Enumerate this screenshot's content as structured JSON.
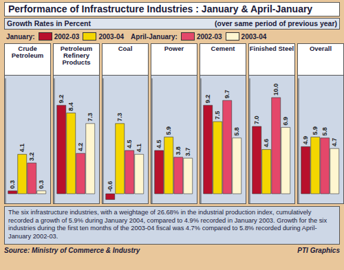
{
  "chart_data": {
    "type": "bar",
    "title": "Performance of Infrastructure Industries : January & April-January",
    "subtitle": "Growth Rates in Percent",
    "note": "(over same period of previous year)",
    "categories": [
      "Crude Petroleum",
      "Petroleum Refinery Products",
      "Coal",
      "Power",
      "Cement",
      "Finished Steel",
      "Overall"
    ],
    "series": [
      {
        "name": "2002-03",
        "period": "January:",
        "color": "#b8102c",
        "values": [
          0.3,
          9.2,
          -0.6,
          4.5,
          9.2,
          7.0,
          4.9
        ],
        "value_labels": [
          "0.3",
          "9.2",
          "-0.6",
          "4.5",
          "9.2",
          "7.0",
          "4.9"
        ]
      },
      {
        "name": "2003-04",
        "period": "January:",
        "color": "#f4d600",
        "values": [
          4.1,
          8.4,
          7.3,
          5.9,
          7.5,
          4.6,
          5.9
        ],
        "value_labels": [
          "4.1",
          "8.4",
          "7.3",
          "5.9",
          "7.5",
          "4.6",
          "5.9"
        ]
      },
      {
        "name": "2002-03",
        "period": "April-January:",
        "color": "#e4476a",
        "values": [
          3.2,
          4.2,
          4.5,
          3.8,
          9.7,
          10.0,
          5.8
        ],
        "value_labels": [
          "3.2",
          "4.2",
          "4.5",
          "3.8",
          "9.7",
          "10.0",
          "5.8"
        ]
      },
      {
        "name": "2003-04",
        "period": "April-January:",
        "color": "#fff6d0",
        "values": [
          0.3,
          7.3,
          4.1,
          3.7,
          5.8,
          6.9,
          4.7
        ],
        "value_labels": [
          "0.3",
          "7.3",
          "4.1",
          "3.7",
          "5.8",
          "6.9",
          "4.7"
        ]
      }
    ],
    "ylim": [
      -1,
      12
    ],
    "tick_labels": false,
    "data_labels": true,
    "legend": "top",
    "caption": "The six infrastructure industries, with a weightage of 26.68% in the industrial production index, cumulatively recorded a growth of 5.9% during January 2004, compared to 4.9% recorded in January 2003. Growth for the six industries during the first ten months of the 2003-04 fiscal was 4.7% compared to 5.8% recorded during April-January 2002-03.",
    "source": "Source: Ministry of Commerce & Industry",
    "credit": "PTI Graphics"
  }
}
